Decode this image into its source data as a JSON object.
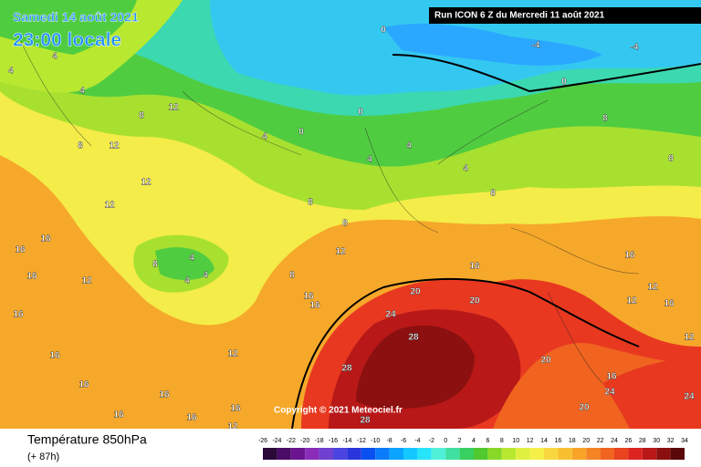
{
  "header": {
    "date": "Samedi 14 août 2021",
    "time": "23:00 locale",
    "run": "Run ICON 6 Z du Mercredi 11 août 2021",
    "copyright": "Copyright © 2021 Meteociel.fr"
  },
  "footer": {
    "title": "Température 850hPa",
    "lead": "(+ 87h)"
  },
  "legend": {
    "labels": [
      "-26",
      "-24",
      "-22",
      "-20",
      "-18",
      "-16",
      "-14",
      "-12",
      "-10",
      "-8",
      "-6",
      "-4",
      "-2",
      "0",
      "2",
      "4",
      "6",
      "8",
      "10",
      "12",
      "14",
      "16",
      "18",
      "20",
      "22",
      "24",
      "26",
      "28",
      "30",
      "32",
      "34"
    ],
    "colors": [
      "#2a0838",
      "#4a0c66",
      "#6a1490",
      "#8a2cb8",
      "#7040d0",
      "#4c44e0",
      "#2a36dc",
      "#0a50f0",
      "#0a7cfa",
      "#0aa4ff",
      "#14c8ff",
      "#28e4f8",
      "#50f0d8",
      "#40e0a0",
      "#38d060",
      "#50c830",
      "#88d828",
      "#b8e830",
      "#e0f040",
      "#f4f048",
      "#f8d840",
      "#f8c030",
      "#f8a428",
      "#f48424",
      "#f06420",
      "#e84420",
      "#dc2420",
      "#b81818",
      "#8c1010",
      "#5a0808"
    ]
  },
  "map": {
    "contour_labels": [
      "4",
      "4",
      "4",
      "8",
      "12",
      "12",
      "8",
      "12",
      "12",
      "16",
      "16",
      "16",
      "12",
      "16",
      "16",
      "16",
      "16",
      "16",
      "16",
      "12",
      "12",
      "16",
      "8",
      "4",
      "4",
      "4",
      "8",
      "8",
      "12",
      "8",
      "16",
      "16",
      "20",
      "24",
      "28",
      "28",
      "28",
      "20",
      "20",
      "20",
      "24",
      "16",
      "16",
      "8",
      "8",
      "0",
      "-4",
      "-4",
      "0",
      "0",
      "0",
      "4",
      "4",
      "4",
      "4",
      "8",
      "12",
      "12",
      "16",
      "12",
      "24",
      "16"
    ]
  }
}
